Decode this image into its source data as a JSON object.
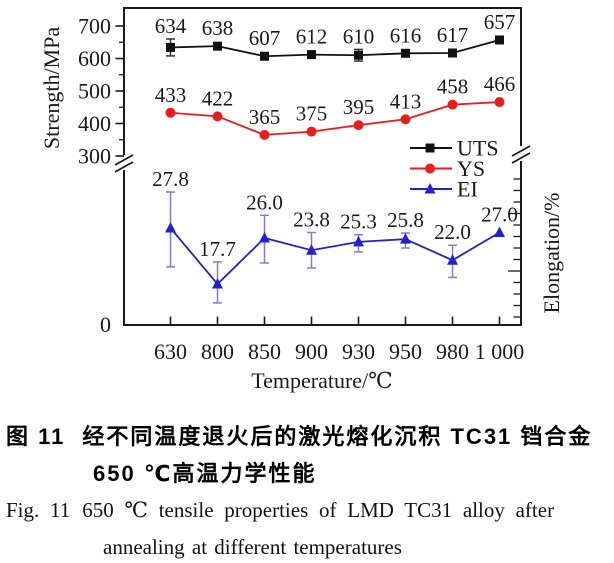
{
  "chart_data": {
    "type": "line",
    "categories": [
      "630",
      "800",
      "850",
      "900",
      "930",
      "950",
      "980",
      "1 000"
    ],
    "xlabel": "Temperature/℃",
    "ylabel_left": "Strength/MPa",
    "ylabel_right": "Elongation/%",
    "left_ticks": [
      700,
      600,
      500,
      400,
      300
    ],
    "left_minor_ticks": [
      650,
      550,
      450,
      350
    ],
    "origin_label": "0",
    "axis_break": true,
    "grid": false,
    "legend_position": "inside-right",
    "legend": [
      "UTS",
      "YS",
      "EI"
    ],
    "series": [
      {
        "name": "UTS",
        "axis": "left",
        "color": "#111111",
        "error_color": "#333333",
        "marker": "square",
        "values": [
          634,
          638,
          607,
          612,
          610,
          616,
          617,
          657
        ],
        "labels": [
          "634",
          "638",
          "607",
          "612",
          "610",
          "616",
          "617",
          "657"
        ],
        "error_plus": [
          26,
          0,
          0,
          0,
          18,
          0,
          0,
          0
        ],
        "error_minus": [
          26,
          0,
          0,
          0,
          18,
          0,
          0,
          0
        ]
      },
      {
        "name": "YS",
        "axis": "left",
        "color": "#ee1b1b",
        "marker": "circle",
        "values": [
          433,
          422,
          365,
          375,
          395,
          413,
          458,
          466
        ],
        "labels": [
          "433",
          "422",
          "365",
          "375",
          "395",
          "413",
          "458",
          "466"
        ]
      },
      {
        "name": "EI",
        "axis": "right",
        "color": "#2121cd",
        "error_color": "#7d7dd2",
        "marker": "triangle",
        "values": [
          27.8,
          17.7,
          26.0,
          23.8,
          25.3,
          25.8,
          22.0,
          27.0
        ],
        "labels": [
          "27.8",
          "17.7",
          "26.0",
          "23.8",
          "25.3",
          "25.8",
          "22.0",
          "27.0"
        ],
        "error_plus": [
          6.5,
          4.0,
          4.1,
          3.2,
          1.3,
          1.1,
          2.7,
          0
        ],
        "error_minus": [
          7.0,
          3.4,
          4.5,
          3.2,
          1.8,
          1.6,
          3.1,
          0
        ]
      }
    ]
  },
  "caption": {
    "zh_label": "图 11",
    "zh_line1": "经不同温度退火后的激光熔化沉积 TC31 铛合金",
    "zh_line2": "650 ℃高温力学性能",
    "en_label": "Fig. 11",
    "en_line1": "650 ℃ tensile properties of LMD TC31 alloy after",
    "en_line2": "annealing at different temperatures"
  }
}
